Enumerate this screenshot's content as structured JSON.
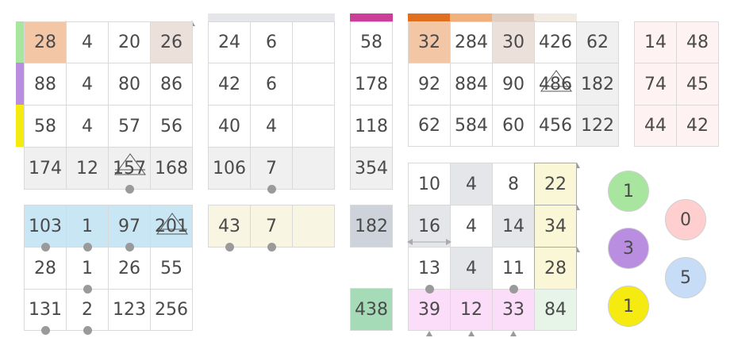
{
  "colors": {
    "green_tile": "#a8e6a0",
    "purple_tile": "#b98ee0",
    "yellow_tile": "#f6eb10",
    "pink_tile": "#ffcfcf",
    "blue_tile": "#c7ddf7",
    "orange_cell": "#f3c6a6",
    "tan_cell": "#ece1da",
    "light_blue_row": "#c9e6f4",
    "cream_row": "#f9f5e3",
    "grey_cell": "#f0f0f0",
    "sum_grey": "#ced3db",
    "sum_green": "#a6dbb8",
    "pink_row": "#fbdcf9",
    "mint_cell": "#e6f5e8",
    "yellow_cell": "#f9f7d6"
  },
  "grid_a": {
    "rows": [
      [
        "28",
        "4",
        "20",
        "26"
      ],
      [
        "88",
        "4",
        "80",
        "86"
      ],
      [
        "58",
        "4",
        "57",
        "56"
      ],
      [
        "174",
        "12",
        "157",
        "168"
      ]
    ],
    "sums": [
      "103",
      "1",
      "97",
      "201"
    ],
    "extra_rows": [
      [
        "28",
        "1",
        "26",
        "55"
      ],
      [
        "131",
        "2",
        "123",
        "256"
      ]
    ]
  },
  "grid_b": {
    "rows": [
      [
        "24",
        "6",
        ""
      ],
      [
        "42",
        "6",
        ""
      ],
      [
        "40",
        "4",
        ""
      ],
      [
        "106",
        "7",
        ""
      ]
    ],
    "sums": [
      "43",
      "7",
      ""
    ]
  },
  "grid_c": {
    "rows": [
      [
        "58"
      ],
      [
        "178"
      ],
      [
        "118"
      ],
      [
        "354"
      ]
    ],
    "sum": "182",
    "total": "438"
  },
  "grid_d": {
    "rows": [
      [
        "32",
        "284",
        "30",
        "426",
        "62"
      ],
      [
        "92",
        "884",
        "90",
        "486",
        "182"
      ],
      [
        "62",
        "584",
        "60",
        "456",
        "122"
      ]
    ]
  },
  "grid_e": {
    "rows": [
      [
        "14",
        "48"
      ],
      [
        "74",
        "45"
      ],
      [
        "44",
        "42"
      ]
    ]
  },
  "grid_f": {
    "rows": [
      [
        "10",
        "4",
        "8",
        "22"
      ],
      [
        "16",
        "4",
        "14",
        "34"
      ],
      [
        "13",
        "4",
        "11",
        "28"
      ],
      [
        "39",
        "12",
        "33",
        "84"
      ]
    ]
  },
  "tiles": [
    {
      "value": "1",
      "color": "green"
    },
    {
      "value": "0",
      "color": "pink"
    },
    {
      "value": "3",
      "color": "purple"
    },
    {
      "value": "5",
      "color": "blue"
    },
    {
      "value": "1",
      "color": "yellow"
    }
  ]
}
